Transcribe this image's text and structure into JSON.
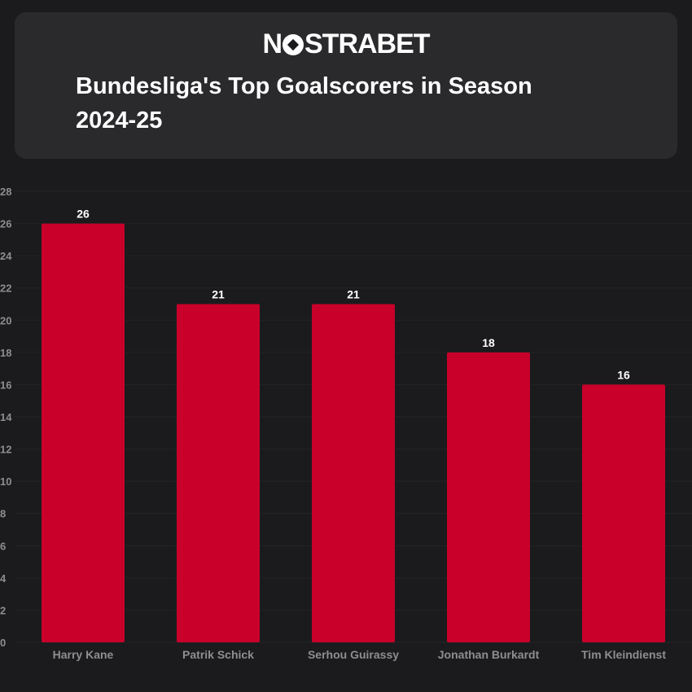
{
  "brand": {
    "name_part1": "N",
    "name_part2": "STRABET",
    "accent_color": "#c8002a"
  },
  "chart_data": {
    "type": "bar",
    "title": "Bundesliga's Top Goalscorers in Season 2024-25",
    "categories": [
      "Harry Kane",
      "Patrik Schick",
      "Serhou Guirassy",
      "Jonathan Burkardt",
      "Tim Kleindienst"
    ],
    "values": [
      26,
      21,
      21,
      18,
      16
    ],
    "xlabel": "",
    "ylabel": "",
    "ylim": [
      0,
      28
    ],
    "yticks": [
      0,
      2,
      4,
      6,
      8,
      10,
      12,
      14,
      16,
      18,
      20,
      22,
      24,
      26,
      28
    ],
    "bar_color": "#c8002a",
    "grid": true
  }
}
